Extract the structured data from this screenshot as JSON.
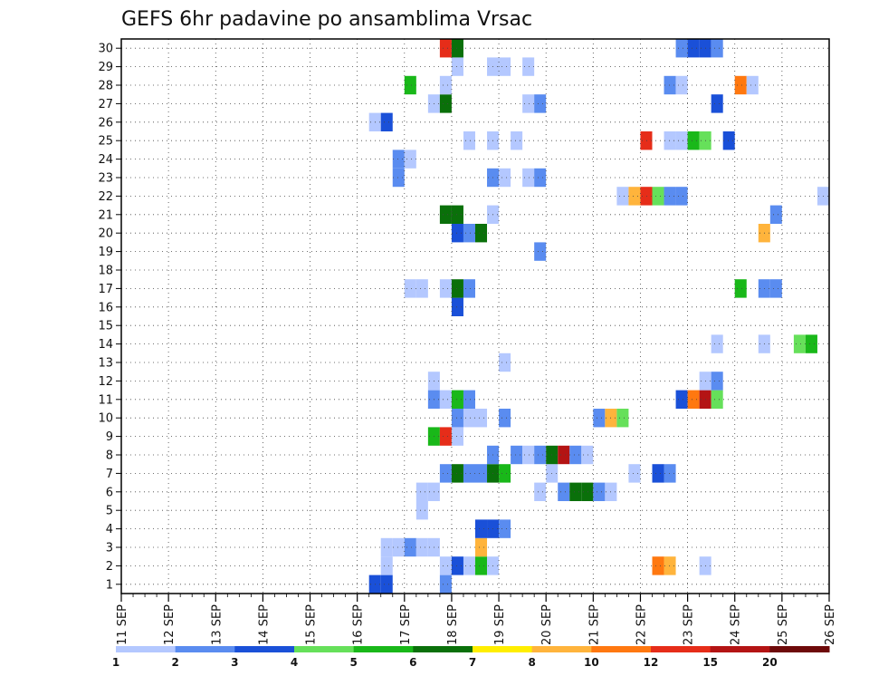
{
  "chart_data": {
    "type": "heatmap",
    "title": "GEFS 6hr padavine po ansamblima Vrsac",
    "x_ticks": [
      "11 SEP",
      "12 SEP",
      "13 SEP",
      "14 SEP",
      "15 SEP",
      "16 SEP",
      "17 SEP",
      "18 SEP",
      "19 SEP",
      "20 SEP",
      "21 SEP",
      "22 SEP",
      "23 SEP",
      "24 SEP",
      "25 SEP",
      "26 SEP"
    ],
    "y_ticks": [
      "1",
      "2",
      "3",
      "4",
      "5",
      "6",
      "7",
      "8",
      "9",
      "10",
      "11",
      "12",
      "13",
      "14",
      "15",
      "16",
      "17",
      "18",
      "19",
      "20",
      "21",
      "22",
      "23",
      "24",
      "25",
      "26",
      "27",
      "28",
      "29",
      "30"
    ],
    "x_range": [
      "11 SEP 00",
      "26 SEP 00"
    ],
    "y_range": [
      0,
      30
    ],
    "grid": true,
    "legend": {
      "placement": "bottom",
      "labels": [
        "1",
        "2",
        "3",
        "4",
        "5",
        "6",
        "7",
        "8",
        "10",
        "12",
        "15",
        "20"
      ],
      "colors": [
        "#b4c8ff",
        "#5a8cf0",
        "#1a50d8",
        "#66e05a",
        "#19b819",
        "#0a700a",
        "#ffee00",
        "#ffb43c",
        "#ff7810",
        "#e62d19",
        "#b41414",
        "#6e0a0a"
      ]
    },
    "cell_values_note_units": "mm / 6h",
    "points": [
      {
        "x": "16 SEP 06",
        "y": 0,
        "v": 3
      },
      {
        "x": "16 SEP 12",
        "y": 0,
        "v": 3
      },
      {
        "x": "17 SEP 18",
        "y": 0,
        "v": 2
      },
      {
        "x": "16 SEP 12",
        "y": 1,
        "v": 1
      },
      {
        "x": "17 SEP 18",
        "y": 1,
        "v": 1
      },
      {
        "x": "18 SEP 00",
        "y": 1,
        "v": 3
      },
      {
        "x": "18 SEP 06",
        "y": 1,
        "v": 1
      },
      {
        "x": "18 SEP 12",
        "y": 1,
        "v": 5
      },
      {
        "x": "18 SEP 18",
        "y": 1,
        "v": 1
      },
      {
        "x": "22 SEP 06",
        "y": 1,
        "v": 11
      },
      {
        "x": "22 SEP 12",
        "y": 1,
        "v": 8
      },
      {
        "x": "23 SEP 06",
        "y": 1,
        "v": 1
      },
      {
        "x": "16 SEP 12",
        "y": 2,
        "v": 1
      },
      {
        "x": "16 SEP 18",
        "y": 2,
        "v": 1
      },
      {
        "x": "17 SEP 00",
        "y": 2,
        "v": 2
      },
      {
        "x": "17 SEP 06",
        "y": 2,
        "v": 1
      },
      {
        "x": "17 SEP 12",
        "y": 2,
        "v": 1
      },
      {
        "x": "18 SEP 12",
        "y": 2,
        "v": 9
      },
      {
        "x": "18 SEP 12",
        "y": 3,
        "v": 3
      },
      {
        "x": "18 SEP 18",
        "y": 3,
        "v": 3
      },
      {
        "x": "19 SEP 00",
        "y": 3,
        "v": 2
      },
      {
        "x": "17 SEP 06",
        "y": 4,
        "v": 1
      },
      {
        "x": "17 SEP 06",
        "y": 5,
        "v": 1
      },
      {
        "x": "17 SEP 12",
        "y": 5,
        "v": 1
      },
      {
        "x": "19 SEP 18",
        "y": 5,
        "v": 1
      },
      {
        "x": "20 SEP 06",
        "y": 5,
        "v": 2
      },
      {
        "x": "20 SEP 12",
        "y": 5,
        "v": 6
      },
      {
        "x": "20 SEP 18",
        "y": 5,
        "v": 6
      },
      {
        "x": "21 SEP 00",
        "y": 5,
        "v": 2
      },
      {
        "x": "21 SEP 06",
        "y": 5,
        "v": 1
      },
      {
        "x": "17 SEP 18",
        "y": 6,
        "v": 2
      },
      {
        "x": "18 SEP 00",
        "y": 6,
        "v": 6
      },
      {
        "x": "18 SEP 06",
        "y": 6,
        "v": 2
      },
      {
        "x": "18 SEP 12",
        "y": 6,
        "v": 2
      },
      {
        "x": "18 SEP 18",
        "y": 6,
        "v": 6
      },
      {
        "x": "19 SEP 00",
        "y": 6,
        "v": 5
      },
      {
        "x": "20 SEP 00",
        "y": 6,
        "v": 1
      },
      {
        "x": "21 SEP 18",
        "y": 6,
        "v": 1
      },
      {
        "x": "22 SEP 06",
        "y": 6,
        "v": 3
      },
      {
        "x": "22 SEP 12",
        "y": 6,
        "v": 2
      },
      {
        "x": "18 SEP 18",
        "y": 7,
        "v": 2
      },
      {
        "x": "19 SEP 06",
        "y": 7,
        "v": 2
      },
      {
        "x": "19 SEP 12",
        "y": 7,
        "v": 1
      },
      {
        "x": "19 SEP 18",
        "y": 7,
        "v": 2
      },
      {
        "x": "20 SEP 00",
        "y": 7,
        "v": 6
      },
      {
        "x": "20 SEP 06",
        "y": 7,
        "v": 15
      },
      {
        "x": "20 SEP 12",
        "y": 7,
        "v": 2
      },
      {
        "x": "20 SEP 18",
        "y": 7,
        "v": 1
      },
      {
        "x": "17 SEP 12",
        "y": 8,
        "v": 5
      },
      {
        "x": "17 SEP 18",
        "y": 8,
        "v": 13
      },
      {
        "x": "18 SEP 00",
        "y": 8,
        "v": 1
      },
      {
        "x": "18 SEP 00",
        "y": 9,
        "v": 2
      },
      {
        "x": "18 SEP 06",
        "y": 9,
        "v": 1
      },
      {
        "x": "18 SEP 12",
        "y": 9,
        "v": 1
      },
      {
        "x": "19 SEP 00",
        "y": 9,
        "v": 2
      },
      {
        "x": "21 SEP 00",
        "y": 9,
        "v": 2
      },
      {
        "x": "21 SEP 06",
        "y": 9,
        "v": 8
      },
      {
        "x": "21 SEP 12",
        "y": 9,
        "v": 4
      },
      {
        "x": "17 SEP 12",
        "y": 10,
        "v": 2
      },
      {
        "x": "17 SEP 18",
        "y": 10,
        "v": 1
      },
      {
        "x": "18 SEP 00",
        "y": 10,
        "v": 5
      },
      {
        "x": "18 SEP 06",
        "y": 10,
        "v": 2
      },
      {
        "x": "22 SEP 18",
        "y": 10,
        "v": 3
      },
      {
        "x": "23 SEP 00",
        "y": 10,
        "v": 10
      },
      {
        "x": "23 SEP 06",
        "y": 10,
        "v": 15
      },
      {
        "x": "23 SEP 12",
        "y": 10,
        "v": 4
      },
      {
        "x": "17 SEP 12",
        "y": 11,
        "v": 1
      },
      {
        "x": "23 SEP 06",
        "y": 11,
        "v": 1
      },
      {
        "x": "23 SEP 12",
        "y": 11,
        "v": 2
      },
      {
        "x": "19 SEP 00",
        "y": 12,
        "v": 1
      },
      {
        "x": "23 SEP 12",
        "y": 13,
        "v": 1
      },
      {
        "x": "24 SEP 12",
        "y": 13,
        "v": 1
      },
      {
        "x": "25 SEP 06",
        "y": 13,
        "v": 4
      },
      {
        "x": "25 SEP 12",
        "y": 13,
        "v": 5
      },
      {
        "x": "18 SEP 00",
        "y": 15,
        "v": 3
      },
      {
        "x": "17 SEP 00",
        "y": 16,
        "v": 1
      },
      {
        "x": "17 SEP 06",
        "y": 16,
        "v": 1
      },
      {
        "x": "17 SEP 18",
        "y": 16,
        "v": 1
      },
      {
        "x": "18 SEP 00",
        "y": 16,
        "v": 6
      },
      {
        "x": "18 SEP 06",
        "y": 16,
        "v": 2
      },
      {
        "x": "24 SEP 00",
        "y": 16,
        "v": 5
      },
      {
        "x": "24 SEP 18",
        "y": 16,
        "v": 2
      },
      {
        "x": "24 SEP 12",
        "y": 16,
        "v": 2
      },
      {
        "x": "19 SEP 18",
        "y": 18,
        "v": 2
      },
      {
        "x": "18 SEP 00",
        "y": 19,
        "v": 3
      },
      {
        "x": "18 SEP 06",
        "y": 19,
        "v": 2
      },
      {
        "x": "18 SEP 12",
        "y": 19,
        "v": 6
      },
      {
        "x": "24 SEP 12",
        "y": 19,
        "v": 8
      },
      {
        "x": "17 SEP 18",
        "y": 20,
        "v": 6
      },
      {
        "x": "18 SEP 00",
        "y": 20,
        "v": 6
      },
      {
        "x": "18 SEP 18",
        "y": 20,
        "v": 1
      },
      {
        "x": "24 SEP 18",
        "y": 20,
        "v": 2
      },
      {
        "x": "21 SEP 12",
        "y": 21,
        "v": 1
      },
      {
        "x": "21 SEP 18",
        "y": 21,
        "v": 9
      },
      {
        "x": "22 SEP 00",
        "y": 21,
        "v": 13
      },
      {
        "x": "22 SEP 06",
        "y": 21,
        "v": 4
      },
      {
        "x": "22 SEP 12",
        "y": 21,
        "v": 2
      },
      {
        "x": "22 SEP 18",
        "y": 21,
        "v": 2
      },
      {
        "x": "25 SEP 18",
        "y": 21,
        "v": 1
      },
      {
        "x": "16 SEP 18",
        "y": 22,
        "v": 2
      },
      {
        "x": "18 SEP 18",
        "y": 22,
        "v": 2
      },
      {
        "x": "19 SEP 00",
        "y": 22,
        "v": 1
      },
      {
        "x": "19 SEP 12",
        "y": 22,
        "v": 1
      },
      {
        "x": "19 SEP 18",
        "y": 22,
        "v": 2
      },
      {
        "x": "16 SEP 18",
        "y": 23,
        "v": 2
      },
      {
        "x": "17 SEP 00",
        "y": 23,
        "v": 1
      },
      {
        "x": "18 SEP 06",
        "y": 24,
        "v": 1
      },
      {
        "x": "18 SEP 18",
        "y": 24,
        "v": 1
      },
      {
        "x": "19 SEP 06",
        "y": 24,
        "v": 1
      },
      {
        "x": "22 SEP 00",
        "y": 24,
        "v": 13
      },
      {
        "x": "22 SEP 12",
        "y": 24,
        "v": 1
      },
      {
        "x": "22 SEP 18",
        "y": 24,
        "v": 1
      },
      {
        "x": "23 SEP 00",
        "y": 24,
        "v": 5
      },
      {
        "x": "23 SEP 06",
        "y": 24,
        "v": 4
      },
      {
        "x": "23 SEP 18",
        "y": 24,
        "v": 3
      },
      {
        "x": "16 SEP 06",
        "y": 25,
        "v": 1
      },
      {
        "x": "16 SEP 12",
        "y": 25,
        "v": 3
      },
      {
        "x": "17 SEP 12",
        "y": 26,
        "v": 1
      },
      {
        "x": "17 SEP 18",
        "y": 26,
        "v": 6
      },
      {
        "x": "19 SEP 12",
        "y": 26,
        "v": 1
      },
      {
        "x": "19 SEP 18",
        "y": 26,
        "v": 2
      },
      {
        "x": "23 SEP 12",
        "y": 26,
        "v": 3
      },
      {
        "x": "17 SEP 00",
        "y": 27,
        "v": 5
      },
      {
        "x": "17 SEP 18",
        "y": 27,
        "v": 1
      },
      {
        "x": "22 SEP 12",
        "y": 27,
        "v": 2
      },
      {
        "x": "22 SEP 18",
        "y": 27,
        "v": 1
      },
      {
        "x": "24 SEP 00",
        "y": 27,
        "v": 11
      },
      {
        "x": "24 SEP 06",
        "y": 27,
        "v": 1
      },
      {
        "x": "18 SEP 00",
        "y": 28,
        "v": 1
      },
      {
        "x": "18 SEP 18",
        "y": 28,
        "v": 1
      },
      {
        "x": "19 SEP 00",
        "y": 28,
        "v": 1
      },
      {
        "x": "19 SEP 12",
        "y": 28,
        "v": 1
      },
      {
        "x": "17 SEP 18",
        "y": 29,
        "v": 13
      },
      {
        "x": "18 SEP 00",
        "y": 29,
        "v": 6
      },
      {
        "x": "22 SEP 18",
        "y": 29,
        "v": 2
      },
      {
        "x": "23 SEP 00",
        "y": 29,
        "v": 3
      },
      {
        "x": "23 SEP 06",
        "y": 29,
        "v": 3
      },
      {
        "x": "23 SEP 12",
        "y": 29,
        "v": 2
      }
    ]
  }
}
